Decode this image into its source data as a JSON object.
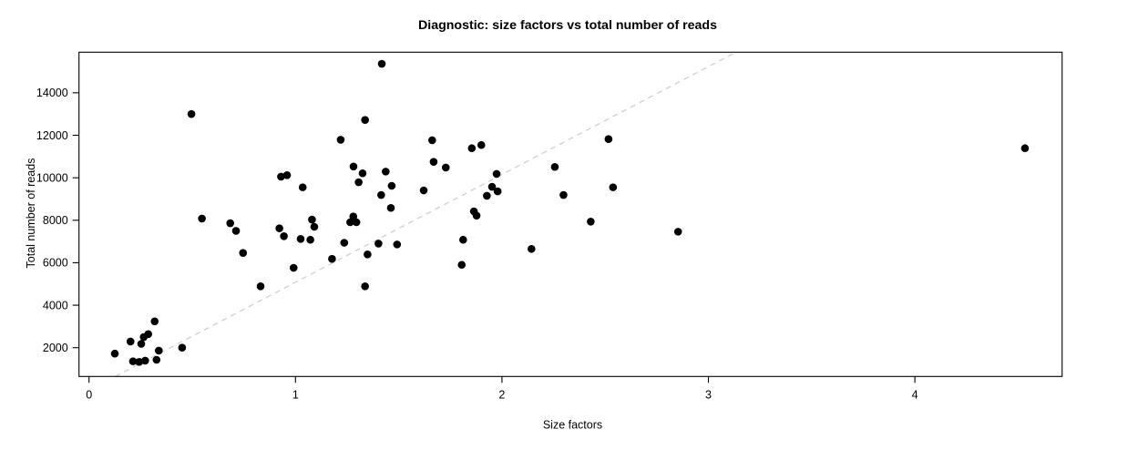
{
  "chart_data": {
    "type": "scatter",
    "title": "Diagnostic: size factors vs total number of reads",
    "xlabel": "Size factors",
    "ylabel": "Total number of reads",
    "x_ticks": [
      0,
      1,
      2,
      3,
      4
    ],
    "y_ticks": [
      2000,
      4000,
      6000,
      8000,
      10000,
      12000,
      14000
    ],
    "xlim": [
      -0.0485,
      4.713
    ],
    "ylim": [
      645,
      15911
    ],
    "grid": false,
    "point_color": "#000000",
    "reference_line": {
      "intercept": 0,
      "slope": 5077,
      "style": "dashed",
      "color": "#c8c8c8"
    },
    "points": [
      {
        "x": 0.125,
        "y": 1720
      },
      {
        "x": 0.201,
        "y": 2290
      },
      {
        "x": 0.213,
        "y": 1360
      },
      {
        "x": 0.243,
        "y": 1330
      },
      {
        "x": 0.253,
        "y": 2180
      },
      {
        "x": 0.265,
        "y": 2500
      },
      {
        "x": 0.272,
        "y": 1390
      },
      {
        "x": 0.287,
        "y": 2640
      },
      {
        "x": 0.318,
        "y": 3240
      },
      {
        "x": 0.327,
        "y": 1430
      },
      {
        "x": 0.338,
        "y": 1860
      },
      {
        "x": 0.451,
        "y": 2000
      },
      {
        "x": 0.496,
        "y": 13000
      },
      {
        "x": 0.547,
        "y": 8080
      },
      {
        "x": 0.684,
        "y": 7860
      },
      {
        "x": 0.712,
        "y": 7500
      },
      {
        "x": 0.746,
        "y": 6460
      },
      {
        "x": 0.831,
        "y": 4890
      },
      {
        "x": 0.922,
        "y": 7620
      },
      {
        "x": 0.93,
        "y": 10050
      },
      {
        "x": 0.944,
        "y": 7250
      },
      {
        "x": 0.959,
        "y": 10120
      },
      {
        "x": 0.991,
        "y": 5760
      },
      {
        "x": 1.025,
        "y": 7120
      },
      {
        "x": 1.035,
        "y": 9550
      },
      {
        "x": 1.072,
        "y": 7080
      },
      {
        "x": 1.08,
        "y": 8030
      },
      {
        "x": 1.091,
        "y": 7690
      },
      {
        "x": 1.177,
        "y": 6180
      },
      {
        "x": 1.219,
        "y": 11790
      },
      {
        "x": 1.236,
        "y": 6940
      },
      {
        "x": 1.265,
        "y": 7905
      },
      {
        "x": 1.28,
        "y": 8175
      },
      {
        "x": 1.295,
        "y": 7905
      },
      {
        "x": 1.281,
        "y": 10530
      },
      {
        "x": 1.306,
        "y": 9790
      },
      {
        "x": 1.325,
        "y": 10210
      },
      {
        "x": 1.337,
        "y": 12720
      },
      {
        "x": 1.337,
        "y": 4890
      },
      {
        "x": 1.349,
        "y": 6390
      },
      {
        "x": 1.402,
        "y": 6900
      },
      {
        "x": 1.415,
        "y": 9190
      },
      {
        "x": 1.418,
        "y": 15365
      },
      {
        "x": 1.437,
        "y": 10290
      },
      {
        "x": 1.462,
        "y": 8580
      },
      {
        "x": 1.466,
        "y": 9620
      },
      {
        "x": 1.492,
        "y": 6860
      },
      {
        "x": 1.621,
        "y": 9405
      },
      {
        "x": 1.662,
        "y": 11765
      },
      {
        "x": 1.669,
        "y": 10750
      },
      {
        "x": 1.728,
        "y": 10480
      },
      {
        "x": 1.805,
        "y": 5900
      },
      {
        "x": 1.812,
        "y": 7080
      },
      {
        "x": 1.854,
        "y": 11390
      },
      {
        "x": 1.864,
        "y": 8420
      },
      {
        "x": 1.877,
        "y": 8220
      },
      {
        "x": 1.9,
        "y": 11540
      },
      {
        "x": 1.927,
        "y": 9150
      },
      {
        "x": 1.952,
        "y": 9575
      },
      {
        "x": 1.974,
        "y": 10180
      },
      {
        "x": 1.979,
        "y": 9360
      },
      {
        "x": 2.143,
        "y": 6650
      },
      {
        "x": 2.256,
        "y": 10510
      },
      {
        "x": 2.298,
        "y": 9190
      },
      {
        "x": 2.43,
        "y": 7935
      },
      {
        "x": 2.516,
        "y": 11820
      },
      {
        "x": 2.538,
        "y": 9550
      },
      {
        "x": 2.853,
        "y": 7460
      },
      {
        "x": 4.533,
        "y": 11390
      }
    ]
  }
}
